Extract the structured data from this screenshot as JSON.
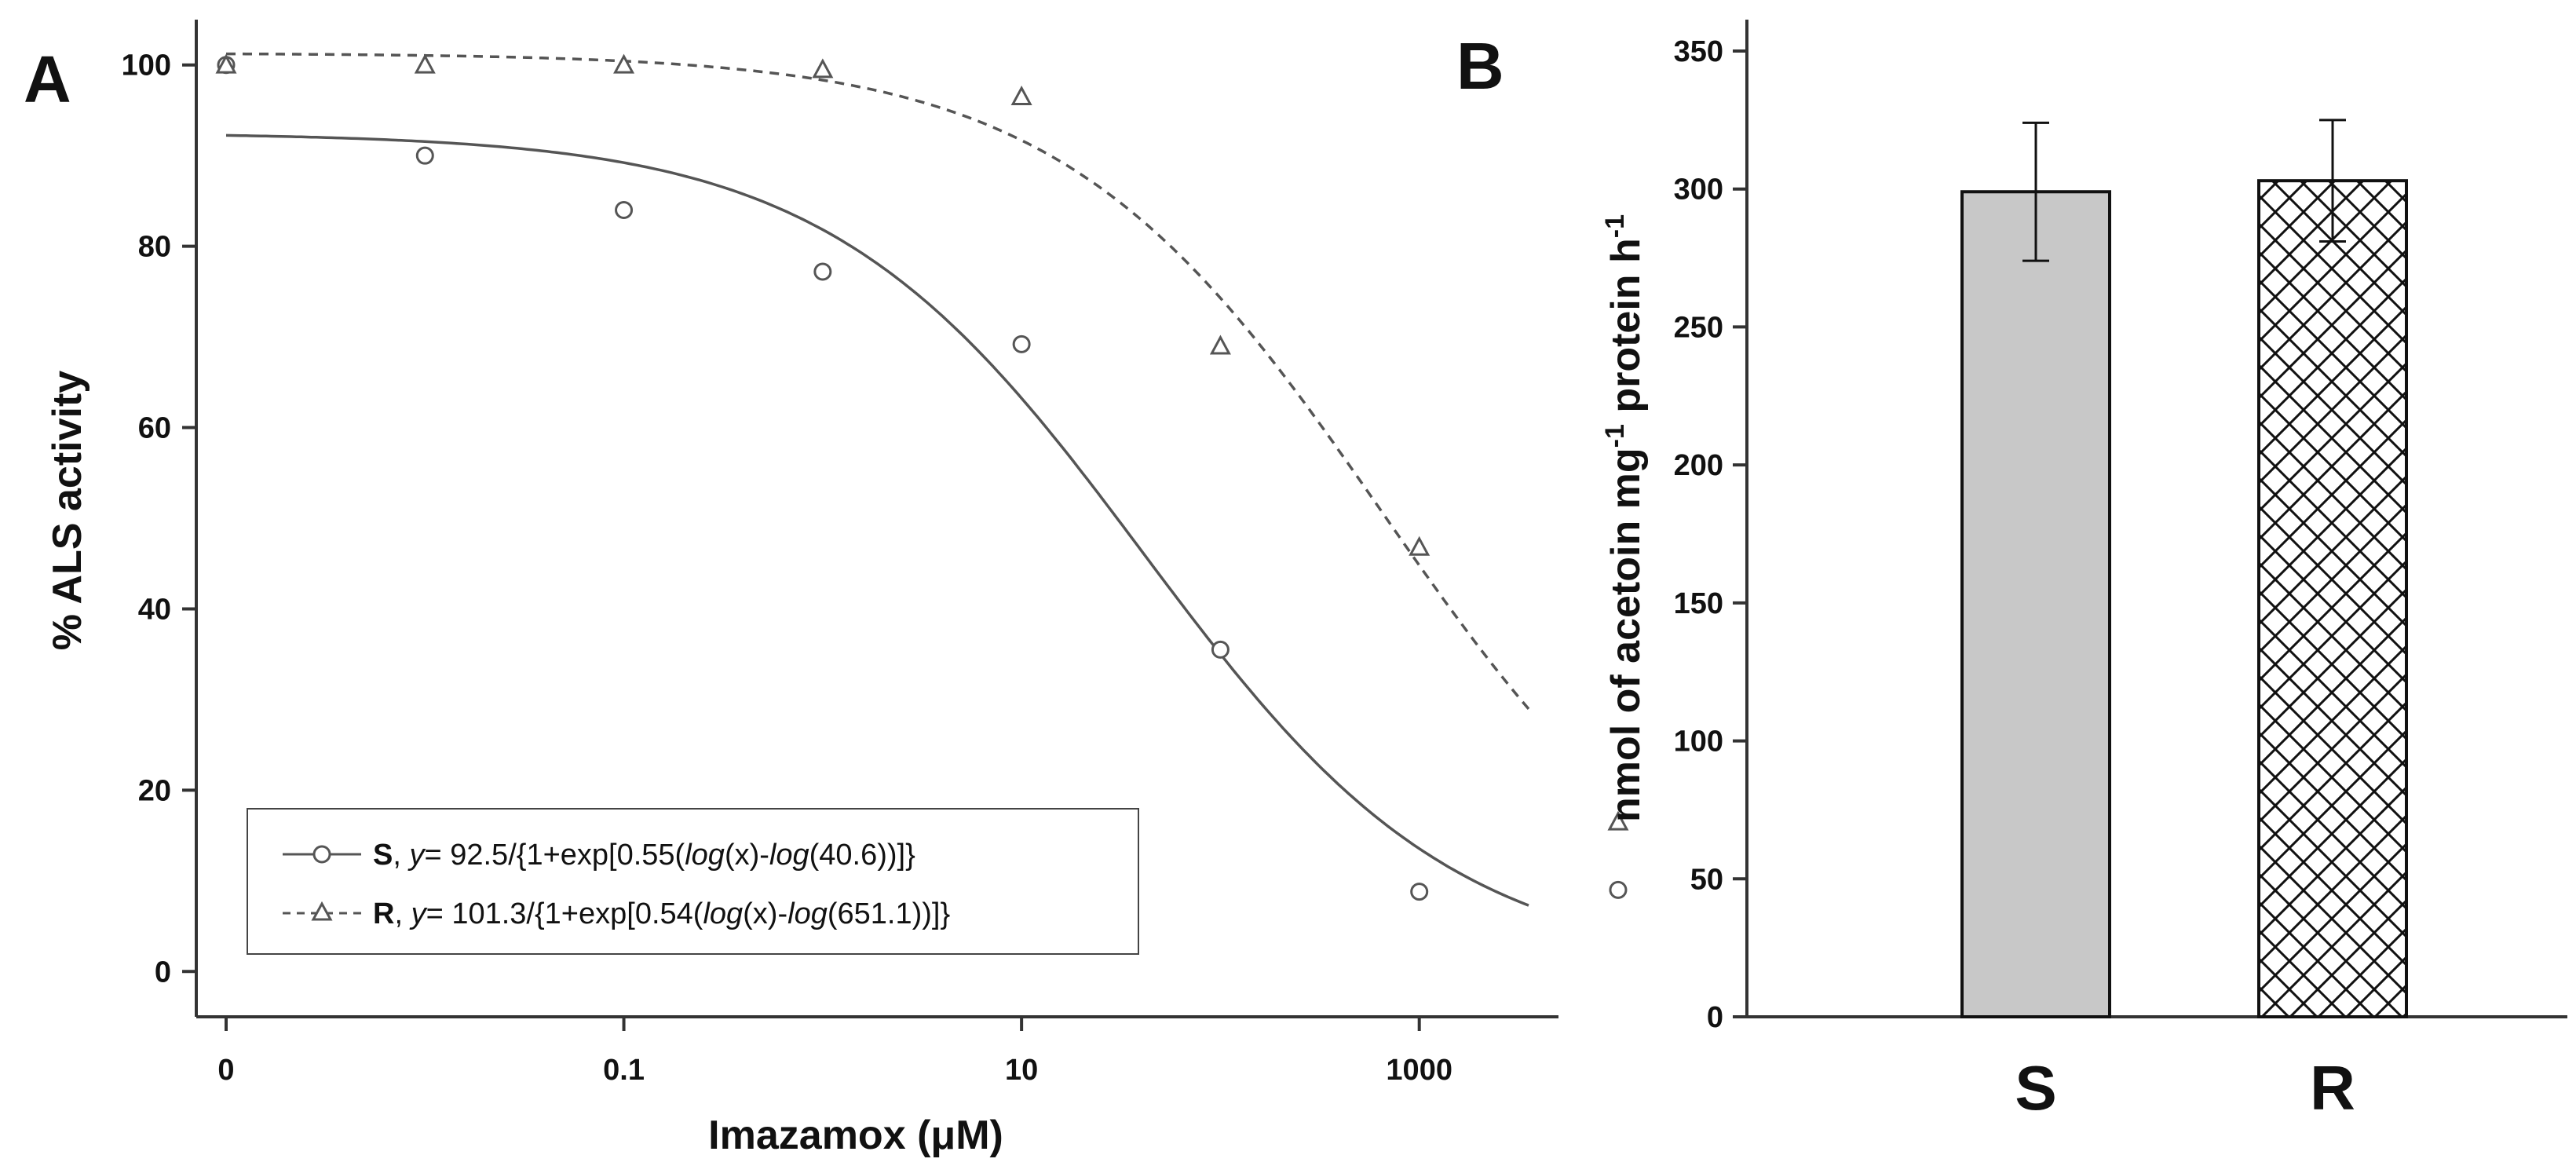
{
  "chart_data": [
    {
      "panel": "A",
      "type": "scatter",
      "xlabel": "Imazamox (μM)",
      "ylabel": "% ALS activity",
      "xscale": "log",
      "xticks": [
        {
          "value": 0.001,
          "label": "0"
        },
        {
          "value": 0.1,
          "label": "0.1"
        },
        {
          "value": 10,
          "label": "10"
        },
        {
          "value": 1000,
          "label": "1000"
        }
      ],
      "xlim_log10": [
        -3.15,
        3.7
      ],
      "ylim": [
        -5,
        105
      ],
      "yticks": [
        "0",
        "20",
        "40",
        "60",
        "80",
        "100"
      ],
      "legend_position": "bottom-left",
      "series": [
        {
          "name": "S",
          "marker": "circle",
          "line": "solid",
          "color": "#555555",
          "equation": {
            "prefix": "y",
            "main": "= 92.5/{1+exp[0.55(",
            "log1": "log",
            "mid": "(x)-",
            "log2": "log",
            "tail": "(40.6))]}"
          },
          "fit": {
            "top": 92.5,
            "slope": 0.55,
            "ec50": 40.6
          },
          "points": {
            "x": [
              0.001,
              0.01,
              0.1,
              1,
              10,
              100,
              1000,
              10000
            ],
            "y": [
              100,
              90,
              84,
              77.2,
              69.2,
              35.5,
              8.8,
              9.0
            ]
          }
        },
        {
          "name": "R",
          "marker": "triangle",
          "line": "dashed",
          "color": "#555555",
          "equation": {
            "prefix": "y",
            "main": "= 101.3/{1+exp[0.54(",
            "log1": "log",
            "mid": "(x)-",
            "log2": "log",
            "tail": "(651.1))]}"
          },
          "fit": {
            "top": 101.3,
            "slope": 0.54,
            "ec50": 651.1
          },
          "points": {
            "x": [
              0.001,
              0.01,
              0.1,
              1,
              10,
              100,
              1000,
              10000
            ],
            "y": [
              100,
              100,
              100,
              99.5,
              96.5,
              69.0,
              46.8,
              16.5
            ]
          }
        }
      ]
    },
    {
      "panel": "B",
      "type": "bar",
      "ylabel": "nmol of acetoin mg",
      "ylabel_sup1": "-1",
      "ylabel_mid": " protein h",
      "ylabel_sup2": "-1",
      "ylim": [
        0,
        350
      ],
      "yticks": [
        "0",
        "50",
        "100",
        "150",
        "200",
        "250",
        "300",
        "350"
      ],
      "categories": [
        "S",
        "R"
      ],
      "values": [
        299,
        303
      ],
      "errors": [
        25,
        22
      ],
      "fills": [
        "#c8c8c8",
        "hatch"
      ]
    }
  ]
}
